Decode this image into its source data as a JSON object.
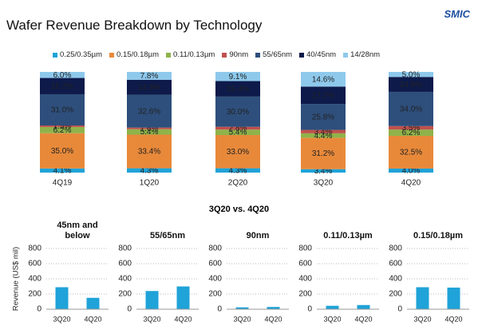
{
  "header": {
    "title": "Wafer Revenue Breakdown by Technology",
    "logo": "SMIC"
  },
  "comparison_title": "3Q20 vs. 4Q20",
  "chart_data": [
    {
      "type": "stacked_bar",
      "categories": [
        "4Q19",
        "1Q20",
        "2Q20",
        "3Q20",
        "4Q20"
      ],
      "series": [
        {
          "name": "0.25/0.35µm",
          "color": "#1fa3d8",
          "values": [
            4.1,
            4.3,
            4.3,
            3.4,
            4.0
          ],
          "value_labels": [
            "4.1%",
            "4.3%",
            "4.3%",
            "3.4%",
            "4.0%"
          ]
        },
        {
          "name": "0.15/0.18µm",
          "color": "#e8893a",
          "values": [
            35.0,
            33.4,
            33.0,
            31.2,
            32.5
          ],
          "value_labels": [
            "35.0%",
            "33.4%",
            "33.0%",
            "31.2%",
            "32.5%"
          ]
        },
        {
          "name": "0.11/0.13µm",
          "color": "#8fb34a",
          "values": [
            6.2,
            5.4,
            5.4,
            4.4,
            6.2
          ],
          "value_labels": [
            "6.2%",
            "5.4%",
            "5.4%",
            "4.4%",
            "6.2%"
          ]
        },
        {
          "name": "90nm",
          "color": "#c0504d",
          "values": [
            1.5,
            1.6,
            2.8,
            3.4,
            3.5
          ],
          "value_labels": [
            "1.5%",
            "1.6%",
            "2.8%",
            "3.4%",
            "3.5%"
          ]
        },
        {
          "name": "55/65nm",
          "color": "#2e4f7c",
          "values": [
            31.0,
            32.6,
            30.0,
            25.8,
            34.0
          ],
          "value_labels": [
            "31.0%",
            "32.6%",
            "30.0%",
            "25.8%",
            "34.0%"
          ]
        },
        {
          "name": "40/45nm",
          "color": "#0d1a4a",
          "values": [
            16.2,
            14.9,
            15.4,
            17.2,
            14.8
          ],
          "value_labels": [
            "16.2%",
            "14.9%",
            "15.4%",
            "17.2%",
            "14.8%"
          ]
        },
        {
          "name": "14/28nm",
          "color": "#8ec9ec",
          "values": [
            6.0,
            7.8,
            9.1,
            14.6,
            5.0
          ],
          "value_labels": [
            "6.0%",
            "7.8%",
            "9.1%",
            "14.6%",
            "5.0%"
          ]
        }
      ]
    },
    {
      "type": "bar",
      "title": "45nm and below",
      "ylabel": "Revenue (US$ mil)",
      "categories": [
        "3Q20",
        "4Q20"
      ],
      "values": [
        290,
        150
      ],
      "color": "#1fa3d8",
      "ylim": [
        0,
        800
      ],
      "yticks": [
        0,
        200,
        400,
        600,
        800
      ],
      "grid": true
    },
    {
      "type": "bar",
      "title": "55/65nm",
      "categories": [
        "3Q20",
        "4Q20"
      ],
      "values": [
        240,
        300
      ],
      "color": "#1fa3d8",
      "ylim": [
        0,
        800
      ],
      "yticks": [
        0,
        200,
        400,
        600,
        800
      ],
      "grid": true
    },
    {
      "type": "bar",
      "title": "90nm",
      "categories": [
        "3Q20",
        "4Q20"
      ],
      "values": [
        25,
        30
      ],
      "color": "#1fa3d8",
      "ylim": [
        0,
        800
      ],
      "yticks": [
        0,
        200,
        400,
        600,
        800
      ],
      "grid": true
    },
    {
      "type": "bar",
      "title": "0.11/0.13µm",
      "categories": [
        "3Q20",
        "4Q20"
      ],
      "values": [
        45,
        55
      ],
      "color": "#1fa3d8",
      "ylim": [
        0,
        800
      ],
      "yticks": [
        0,
        200,
        400,
        600,
        800
      ],
      "grid": true
    },
    {
      "type": "bar",
      "title": "0.15/0.18µm",
      "categories": [
        "3Q20",
        "4Q20"
      ],
      "values": [
        290,
        285
      ],
      "color": "#1fa3d8",
      "ylim": [
        0,
        800
      ],
      "yticks": [
        0,
        200,
        400,
        600,
        800
      ],
      "grid": true
    }
  ]
}
